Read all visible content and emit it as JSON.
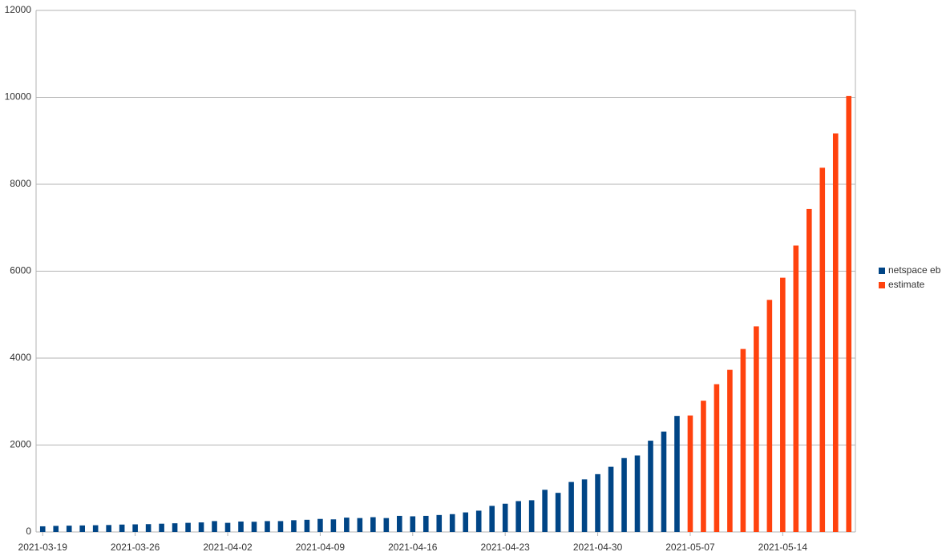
{
  "chart_data": {
    "type": "bar",
    "categories": [
      "2021-03-19",
      null,
      null,
      null,
      null,
      null,
      null,
      "2021-03-26",
      null,
      null,
      null,
      null,
      null,
      null,
      "2021-04-02",
      null,
      null,
      null,
      null,
      null,
      null,
      "2021-04-09",
      null,
      null,
      null,
      null,
      null,
      null,
      "2021-04-16",
      null,
      null,
      null,
      null,
      null,
      null,
      "2021-04-23",
      null,
      null,
      null,
      null,
      null,
      null,
      "2021-04-30",
      null,
      null,
      null,
      null,
      null,
      null,
      "2021-05-07",
      null,
      null,
      null,
      null,
      null,
      null,
      "2021-05-14",
      null,
      null,
      null,
      null,
      null
    ],
    "series": [
      {
        "name": "netspace eb",
        "color": "#004586",
        "values": [
          130,
          140,
          145,
          150,
          155,
          160,
          170,
          175,
          180,
          190,
          200,
          210,
          220,
          250,
          210,
          240,
          235,
          250,
          250,
          270,
          280,
          300,
          290,
          330,
          320,
          340,
          320,
          370,
          360,
          370,
          390,
          410,
          450,
          490,
          600,
          650,
          710,
          730,
          970,
          900,
          1150,
          1210,
          1330,
          1500,
          1700,
          1760,
          2100,
          2310,
          2670,
          null,
          null,
          null,
          null,
          null,
          null,
          null,
          null,
          null,
          null,
          null,
          null,
          null
        ]
      },
      {
        "name": "estimate",
        "color": "#ff420e",
        "values": [
          null,
          null,
          null,
          null,
          null,
          null,
          null,
          null,
          null,
          null,
          null,
          null,
          null,
          null,
          null,
          null,
          null,
          null,
          null,
          null,
          null,
          null,
          null,
          null,
          null,
          null,
          null,
          null,
          null,
          null,
          null,
          null,
          null,
          null,
          null,
          null,
          null,
          null,
          null,
          null,
          null,
          null,
          null,
          null,
          null,
          null,
          null,
          null,
          null,
          2680,
          3020,
          3400,
          3730,
          4210,
          4730,
          5340,
          5850,
          6590,
          7430,
          8380,
          9170,
          10030
        ]
      }
    ],
    "ylim": [
      0,
      12000
    ],
    "yticks": [
      0,
      2000,
      4000,
      6000,
      8000,
      10000,
      12000
    ],
    "grid": true,
    "legend": "right"
  }
}
